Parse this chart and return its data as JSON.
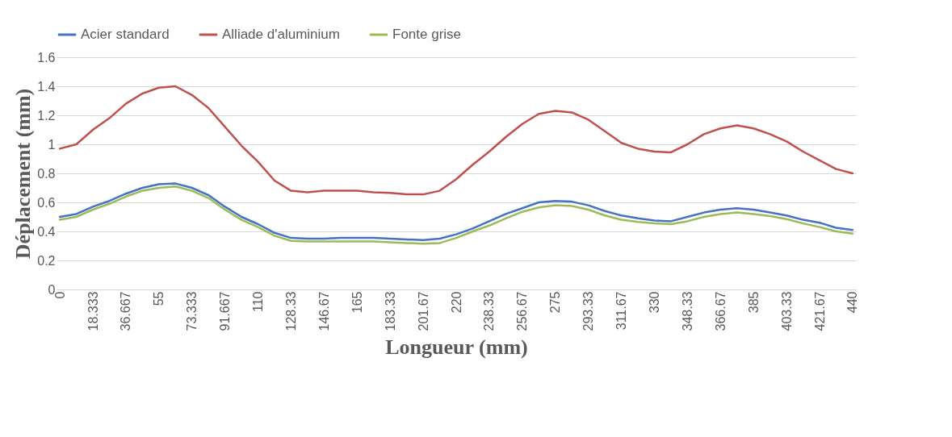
{
  "chart_data": {
    "type": "line",
    "xlabel": "Longueur (mm)",
    "ylabel": "Déplacement (mm)",
    "categories": [
      "0",
      null,
      "18.333",
      null,
      "36.667",
      null,
      "55",
      null,
      "73.333",
      null,
      "91.667",
      null,
      "110",
      null,
      "128.33",
      null,
      "146.67",
      null,
      "165",
      null,
      "183.33",
      null,
      "201.67",
      null,
      "220",
      null,
      "238.33",
      null,
      "256.67",
      null,
      "275",
      null,
      "293.33",
      null,
      "311.67",
      null,
      "330",
      null,
      "348.33",
      null,
      "366.67",
      null,
      "385",
      null,
      "403.33",
      null,
      "421.67",
      null,
      "440"
    ],
    "series": [
      {
        "name": "Acier standard",
        "color": "#4472c4",
        "values": [
          0.5,
          0.52,
          0.57,
          0.61,
          0.66,
          0.7,
          0.725,
          0.73,
          0.7,
          0.65,
          0.57,
          0.5,
          0.45,
          0.39,
          0.355,
          0.35,
          0.35,
          0.355,
          0.355,
          0.355,
          0.35,
          0.345,
          0.34,
          0.35,
          0.38,
          0.42,
          0.47,
          0.52,
          0.56,
          0.6,
          0.61,
          0.605,
          0.58,
          0.54,
          0.51,
          0.49,
          0.475,
          0.47,
          0.5,
          0.53,
          0.55,
          0.56,
          0.55,
          0.53,
          0.51,
          0.48,
          0.46,
          0.425,
          0.41
        ]
      },
      {
        "name": "Alliade d'aluminium",
        "color": "#c0504d",
        "values": [
          0.97,
          1.0,
          1.1,
          1.18,
          1.28,
          1.35,
          1.39,
          1.4,
          1.34,
          1.25,
          1.12,
          0.99,
          0.88,
          0.75,
          0.68,
          0.67,
          0.68,
          0.68,
          0.68,
          0.67,
          0.665,
          0.655,
          0.655,
          0.68,
          0.76,
          0.86,
          0.95,
          1.05,
          1.14,
          1.21,
          1.23,
          1.22,
          1.17,
          1.09,
          1.01,
          0.97,
          0.95,
          0.945,
          1.0,
          1.07,
          1.11,
          1.13,
          1.11,
          1.07,
          1.02,
          0.95,
          0.89,
          0.83,
          0.8
        ]
      },
      {
        "name": "Fonte grise",
        "color": "#9bbb59",
        "values": [
          0.48,
          0.5,
          0.55,
          0.59,
          0.64,
          0.68,
          0.7,
          0.71,
          0.68,
          0.63,
          0.55,
          0.48,
          0.43,
          0.37,
          0.335,
          0.33,
          0.33,
          0.33,
          0.33,
          0.33,
          0.325,
          0.32,
          0.315,
          0.32,
          0.355,
          0.4,
          0.44,
          0.49,
          0.535,
          0.565,
          0.58,
          0.575,
          0.55,
          0.51,
          0.48,
          0.465,
          0.455,
          0.45,
          0.47,
          0.5,
          0.52,
          0.53,
          0.52,
          0.505,
          0.485,
          0.455,
          0.43,
          0.4,
          0.385
        ]
      }
    ],
    "ylim": [
      0,
      1.6
    ],
    "yticks": [
      0,
      {
        "value": 0.2,
        "label": "0.2"
      },
      {
        "value": 0.4,
        "label": "0.4"
      },
      {
        "value": 0.6,
        "label": "0.6"
      },
      {
        "value": 0.8,
        "label": "0.8"
      },
      1,
      {
        "value": 1.2,
        "label": "1.2"
      },
      {
        "value": 1.4,
        "label": "1.4"
      },
      {
        "value": 1.6,
        "label": "1.6"
      }
    ],
    "grid": "y",
    "legend": "top"
  }
}
